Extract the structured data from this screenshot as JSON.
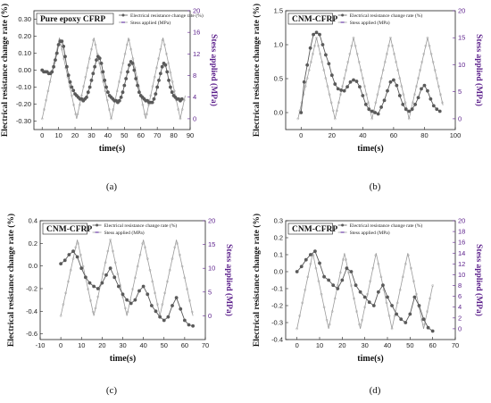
{
  "colors": {
    "resistance": "#5a5a5a",
    "stress": "#9b9b9b",
    "stress_marker": "#6a3ca8",
    "right_axis": "#5a1d8a",
    "axis": "#222222"
  },
  "chart_data": [
    {
      "type": "line",
      "caption": "(a)",
      "title": "Pure epoxy CFRP",
      "xlabel": "time(s)",
      "ylabel": "Electrical resistance change rate (%)",
      "y2label": "Stess applied (MPa)",
      "xlim": [
        -5,
        90
      ],
      "ylim": [
        -0.35,
        0.35
      ],
      "y2lim": [
        -2,
        20
      ],
      "xticks": [
        0,
        10,
        20,
        30,
        40,
        50,
        60,
        70,
        80,
        90
      ],
      "yticks": [
        -0.3,
        -0.2,
        -0.1,
        0.0,
        0.1,
        0.2,
        0.3
      ],
      "y2ticks": [
        0,
        4,
        8,
        12,
        16,
        20
      ],
      "legend": [
        "Electrical resistance change rate (%)",
        "Stess applied (MPa)"
      ],
      "stress": {
        "period": 21,
        "phase": 0,
        "min": 0,
        "max": 15,
        "t_start": 0,
        "t_end": 87
      },
      "series": [
        {
          "name": "Electrical resistance change rate (%)",
          "points": [
            [
              0,
              0.0
            ],
            [
              1,
              -0.01
            ],
            [
              2,
              -0.01
            ],
            [
              3,
              -0.01
            ],
            [
              4,
              -0.02
            ],
            [
              5,
              -0.02
            ],
            [
              6,
              -0.01
            ],
            [
              7,
              0.02
            ],
            [
              8,
              0.06
            ],
            [
              9,
              0.1
            ],
            [
              10,
              0.15
            ],
            [
              11,
              0.17
            ],
            [
              12,
              0.17
            ],
            [
              13,
              0.14
            ],
            [
              14,
              0.08
            ],
            [
              15,
              0.02
            ],
            [
              16,
              -0.03
            ],
            [
              17,
              -0.07
            ],
            [
              18,
              -0.1
            ],
            [
              19,
              -0.12
            ],
            [
              20,
              -0.14
            ],
            [
              21,
              -0.15
            ],
            [
              22,
              -0.16
            ],
            [
              23,
              -0.17
            ],
            [
              24,
              -0.17
            ],
            [
              25,
              -0.18
            ],
            [
              26,
              -0.17
            ],
            [
              27,
              -0.16
            ],
            [
              28,
              -0.13
            ],
            [
              29,
              -0.1
            ],
            [
              30,
              -0.06
            ],
            [
              31,
              -0.02
            ],
            [
              32,
              0.02
            ],
            [
              33,
              0.06
            ],
            [
              34,
              0.08
            ],
            [
              35,
              0.07
            ],
            [
              36,
              0.04
            ],
            [
              37,
              -0.01
            ],
            [
              38,
              -0.06
            ],
            [
              39,
              -0.1
            ],
            [
              40,
              -0.13
            ],
            [
              41,
              -0.15
            ],
            [
              42,
              -0.16
            ],
            [
              43,
              -0.17
            ],
            [
              44,
              -0.18
            ],
            [
              45,
              -0.18
            ],
            [
              46,
              -0.19
            ],
            [
              47,
              -0.18
            ],
            [
              48,
              -0.16
            ],
            [
              49,
              -0.13
            ],
            [
              50,
              -0.09
            ],
            [
              51,
              -0.05
            ],
            [
              52,
              -0.01
            ],
            [
              53,
              0.03
            ],
            [
              54,
              0.05
            ],
            [
              55,
              0.04
            ],
            [
              56,
              0.0
            ],
            [
              57,
              -0.05
            ],
            [
              58,
              -0.09
            ],
            [
              59,
              -0.13
            ],
            [
              60,
              -0.15
            ],
            [
              61,
              -0.16
            ],
            [
              62,
              -0.17
            ],
            [
              63,
              -0.18
            ],
            [
              64,
              -0.18
            ],
            [
              65,
              -0.19
            ],
            [
              66,
              -0.19
            ],
            [
              67,
              -0.19
            ],
            [
              68,
              -0.17
            ],
            [
              69,
              -0.14
            ],
            [
              70,
              -0.1
            ],
            [
              71,
              -0.06
            ],
            [
              72,
              -0.02
            ],
            [
              73,
              0.02
            ],
            [
              74,
              0.04
            ],
            [
              75,
              0.03
            ],
            [
              76,
              -0.01
            ],
            [
              77,
              -0.06
            ],
            [
              78,
              -0.1
            ],
            [
              79,
              -0.13
            ],
            [
              80,
              -0.15
            ],
            [
              81,
              -0.16
            ],
            [
              82,
              -0.17
            ],
            [
              83,
              -0.17
            ],
            [
              84,
              -0.18
            ],
            [
              85,
              -0.17
            ]
          ]
        }
      ]
    },
    {
      "type": "line",
      "caption": "(b)",
      "title": "CNM-CFRP",
      "xlabel": "time(s)",
      "ylabel": "Electrical resistance change rate (%)",
      "y2label": "Stess applied (MPa)",
      "xlim": [
        -10,
        100
      ],
      "ylim": [
        -0.25,
        1.5
      ],
      "y2lim": [
        -2,
        20
      ],
      "xticks": [
        0,
        20,
        40,
        60,
        80,
        100
      ],
      "yticks": [
        0.0,
        0.5,
        1.0,
        1.5
      ],
      "y2ticks": [
        0,
        5,
        10,
        15,
        20
      ],
      "legend": [
        "Electrical resistance change rate (%)",
        "Stess applied (MPa)"
      ],
      "stress": {
        "period": 24,
        "phase": 0,
        "min": 0,
        "max": 15,
        "t_start": -2,
        "t_end": 92
      },
      "series": [
        {
          "name": "Electrical resistance change rate (%)",
          "points": [
            [
              0,
              0.0
            ],
            [
              2,
              0.45
            ],
            [
              4,
              0.7
            ],
            [
              6,
              0.95
            ],
            [
              8,
              1.15
            ],
            [
              10,
              1.18
            ],
            [
              12,
              1.15
            ],
            [
              14,
              1.0
            ],
            [
              16,
              0.85
            ],
            [
              18,
              0.72
            ],
            [
              20,
              0.55
            ],
            [
              22,
              0.42
            ],
            [
              24,
              0.35
            ],
            [
              26,
              0.33
            ],
            [
              28,
              0.32
            ],
            [
              30,
              0.38
            ],
            [
              32,
              0.45
            ],
            [
              34,
              0.48
            ],
            [
              36,
              0.46
            ],
            [
              38,
              0.38
            ],
            [
              40,
              0.25
            ],
            [
              42,
              0.12
            ],
            [
              44,
              0.05
            ],
            [
              46,
              0.02
            ],
            [
              48,
              0.0
            ],
            [
              50,
              -0.02
            ],
            [
              52,
              0.08
            ],
            [
              54,
              0.18
            ],
            [
              56,
              0.32
            ],
            [
              58,
              0.45
            ],
            [
              60,
              0.48
            ],
            [
              62,
              0.4
            ],
            [
              64,
              0.25
            ],
            [
              66,
              0.12
            ],
            [
              68,
              0.05
            ],
            [
              70,
              0.02
            ],
            [
              72,
              0.05
            ],
            [
              74,
              0.12
            ],
            [
              76,
              0.22
            ],
            [
              78,
              0.35
            ],
            [
              80,
              0.4
            ],
            [
              82,
              0.32
            ],
            [
              84,
              0.2
            ],
            [
              86,
              0.1
            ],
            [
              88,
              0.05
            ],
            [
              90,
              0.02
            ]
          ]
        }
      ]
    },
    {
      "type": "line",
      "caption": "(c)",
      "title": "CNM-CFRP",
      "xlabel": "time(s)",
      "ylabel": "Electrical resistance change rate (%)",
      "y2label": "Stess applied (MPa)",
      "xlim": [
        -10,
        70
      ],
      "ylim": [
        -0.65,
        0.4
      ],
      "y2lim": [
        -5,
        20
      ],
      "xticks": [
        -10,
        0,
        10,
        20,
        30,
        40,
        50,
        60,
        70
      ],
      "yticks": [
        -0.6,
        -0.4,
        -0.2,
        0.0,
        0.2,
        0.4
      ],
      "y2ticks": [
        0,
        5,
        10,
        15,
        20
      ],
      "legend": [
        "Electrical resistance change rate (%)",
        "Stess applied (MPa)"
      ],
      "stress": {
        "period": 16,
        "phase": 0,
        "min": 0,
        "max": 16,
        "t_start": 0,
        "t_end": 64
      },
      "series": [
        {
          "name": "Electrical resistance change rate (%)",
          "points": [
            [
              0,
              0.02
            ],
            [
              2,
              0.05
            ],
            [
              4,
              0.1
            ],
            [
              6,
              0.13
            ],
            [
              8,
              0.08
            ],
            [
              10,
              -0.02
            ],
            [
              12,
              -0.1
            ],
            [
              14,
              -0.15
            ],
            [
              16,
              -0.18
            ],
            [
              18,
              -0.2
            ],
            [
              20,
              -0.15
            ],
            [
              22,
              -0.08
            ],
            [
              24,
              -0.02
            ],
            [
              26,
              -0.1
            ],
            [
              28,
              -0.18
            ],
            [
              30,
              -0.25
            ],
            [
              32,
              -0.3
            ],
            [
              34,
              -0.33
            ],
            [
              36,
              -0.3
            ],
            [
              38,
              -0.22
            ],
            [
              40,
              -0.18
            ],
            [
              42,
              -0.25
            ],
            [
              44,
              -0.35
            ],
            [
              46,
              -0.4
            ],
            [
              48,
              -0.45
            ],
            [
              50,
              -0.48
            ],
            [
              52,
              -0.45
            ],
            [
              54,
              -0.35
            ],
            [
              56,
              -0.28
            ],
            [
              58,
              -0.38
            ],
            [
              60,
              -0.48
            ],
            [
              62,
              -0.52
            ],
            [
              64,
              -0.53
            ]
          ]
        }
      ]
    },
    {
      "type": "line",
      "caption": "(d)",
      "title": "CNM-CFRP",
      "xlabel": "time(s)",
      "ylabel": "Electrical resistance change rate (%)",
      "y2label": "Stess applied (MPa)",
      "xlim": [
        -5,
        70
      ],
      "ylim": [
        -0.4,
        0.3
      ],
      "y2lim": [
        -2,
        20
      ],
      "xticks": [
        0,
        10,
        20,
        30,
        40,
        50,
        60,
        70
      ],
      "yticks": [
        -0.4,
        -0.3,
        -0.2,
        -0.1,
        0.0,
        0.1,
        0.2,
        0.3
      ],
      "y2ticks": [
        0,
        2,
        4,
        6,
        8,
        10,
        12,
        14,
        16,
        18,
        20
      ],
      "legend": [
        "Electrical resistance change rate (%)",
        "Stess applied (MPa)"
      ],
      "stress": {
        "period": 14,
        "phase": 0,
        "min": 0,
        "max": 14,
        "t_start": 0,
        "t_end": 60
      },
      "series": [
        {
          "name": "Electrical resistance change rate (%)",
          "points": [
            [
              0,
              0.0
            ],
            [
              2,
              0.03
            ],
            [
              4,
              0.07
            ],
            [
              6,
              0.1
            ],
            [
              8,
              0.12
            ],
            [
              10,
              0.05
            ],
            [
              12,
              -0.03
            ],
            [
              14,
              -0.05
            ],
            [
              16,
              -0.08
            ],
            [
              18,
              -0.1
            ],
            [
              20,
              -0.05
            ],
            [
              22,
              0.02
            ],
            [
              24,
              0.0
            ],
            [
              26,
              -0.08
            ],
            [
              28,
              -0.12
            ],
            [
              30,
              -0.15
            ],
            [
              32,
              -0.18
            ],
            [
              34,
              -0.2
            ],
            [
              36,
              -0.12
            ],
            [
              38,
              -0.08
            ],
            [
              40,
              -0.15
            ],
            [
              42,
              -0.2
            ],
            [
              44,
              -0.25
            ],
            [
              46,
              -0.28
            ],
            [
              48,
              -0.3
            ],
            [
              50,
              -0.25
            ],
            [
              52,
              -0.15
            ],
            [
              54,
              -0.2
            ],
            [
              56,
              -0.28
            ],
            [
              58,
              -0.33
            ],
            [
              60,
              -0.35
            ]
          ]
        }
      ]
    }
  ]
}
